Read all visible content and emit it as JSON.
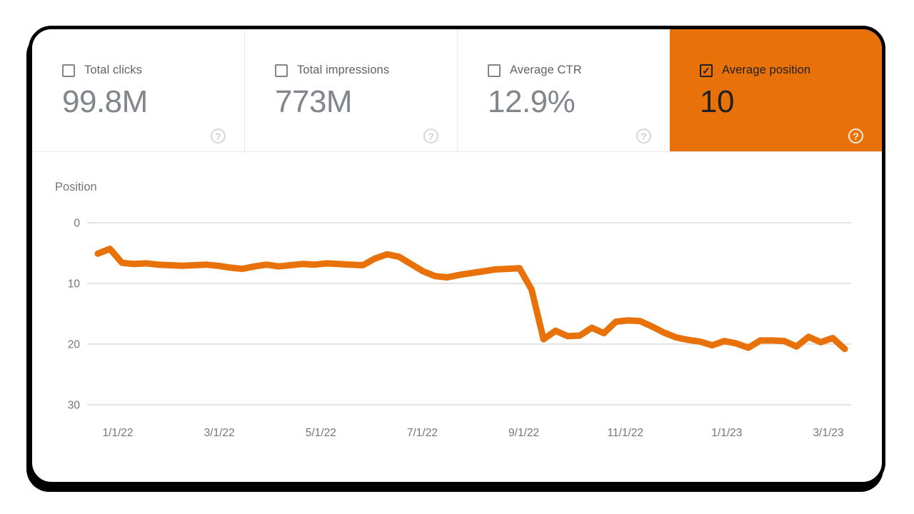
{
  "cards": [
    {
      "label": "Total clicks",
      "value": "99.8M",
      "checked": false,
      "selected": false
    },
    {
      "label": "Total impressions",
      "value": "773M",
      "checked": false,
      "selected": false
    },
    {
      "label": "Average CTR",
      "value": "12.9%",
      "checked": false,
      "selected": false
    },
    {
      "label": "Average position",
      "value": "10",
      "checked": true,
      "selected": true
    }
  ],
  "help_icon_glyph": "?",
  "checkmark_glyph": "✓",
  "colors": {
    "accent_orange": "#e8710a",
    "selected_text": "#212121",
    "metric_value_gray": "#80868b",
    "label_gray": "#5f6368",
    "axis_text_gray": "#757575",
    "gridline_gray": "#e4e4e4",
    "divider_gray": "#e8eaed"
  },
  "chart_data": {
    "type": "line",
    "title": "Position",
    "ylabel": "Position",
    "y_ticks": [
      0,
      10,
      20,
      30
    ],
    "y_axis_inverted": true,
    "ylim": [
      0,
      30
    ],
    "grid": true,
    "x_tick_labels": [
      "1/1/22",
      "3/1/22",
      "5/1/22",
      "7/1/22",
      "9/1/22",
      "11/1/22",
      "1/1/23",
      "3/1/23"
    ],
    "series": [
      {
        "name": "Average position",
        "color": "#e8710a",
        "values": [
          5.1,
          4.3,
          6.6,
          6.8,
          6.7,
          6.9,
          7.0,
          7.1,
          7.0,
          6.9,
          7.1,
          7.4,
          7.6,
          7.2,
          6.9,
          7.2,
          7.0,
          6.8,
          6.9,
          6.7,
          6.8,
          6.9,
          7.0,
          5.9,
          5.2,
          5.6,
          6.8,
          8.0,
          8.8,
          9.0,
          8.6,
          8.3,
          8.0,
          7.7,
          7.6,
          7.5,
          11.0,
          19.2,
          17.8,
          18.7,
          18.6,
          17.3,
          18.2,
          16.3,
          16.1,
          16.2,
          17.1,
          18.1,
          18.9,
          19.3,
          19.6,
          20.2,
          19.5,
          19.9,
          20.6,
          19.4,
          19.4,
          19.5,
          20.4,
          18.8,
          19.7,
          19.0,
          20.8
        ]
      }
    ]
  }
}
